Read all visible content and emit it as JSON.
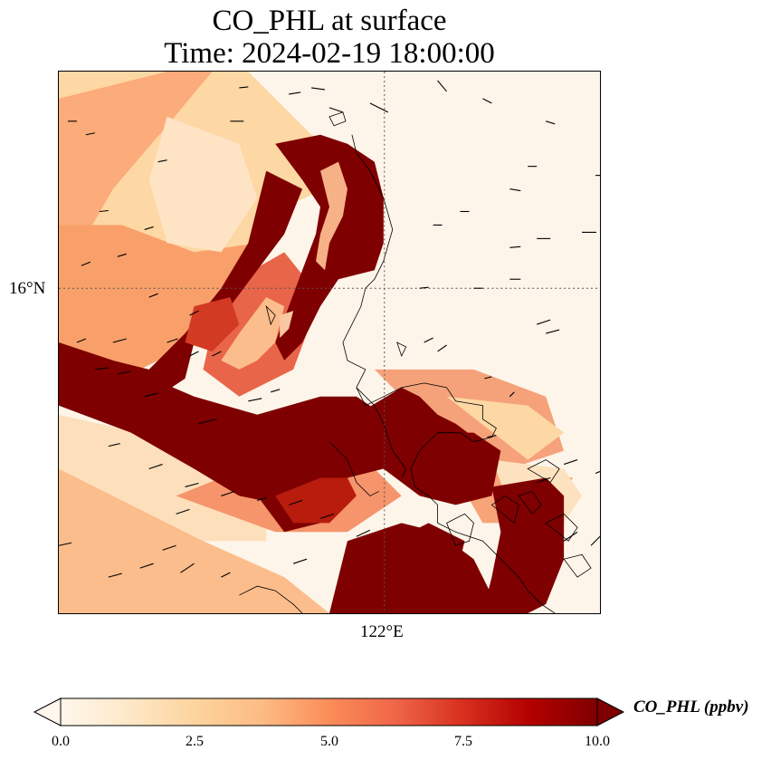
{
  "title": {
    "line1": "CO_PHL at surface",
    "line2": "Time: 2024-02-19 18:00:00"
  },
  "map": {
    "gridlines": {
      "latitude": "16°N",
      "longitude": "122°E",
      "style": "dotted"
    },
    "field": "CO_PHL",
    "units": "ppbv",
    "features": [
      "coastlines",
      "wind-vectors"
    ]
  },
  "colorbar": {
    "label": "CO_PHL (ppbv)",
    "min": 0.0,
    "max": 10.0,
    "extend": "both",
    "colormap": "OrRd",
    "ticks": [
      "0.0",
      "2.5",
      "5.0",
      "7.5",
      "10.0"
    ],
    "colors": [
      "#fff7ec",
      "#fee8c8",
      "#fdd49e",
      "#fdbb84",
      "#fc8d59",
      "#ef6548",
      "#d7301f",
      "#b30000",
      "#7f0000"
    ]
  }
}
